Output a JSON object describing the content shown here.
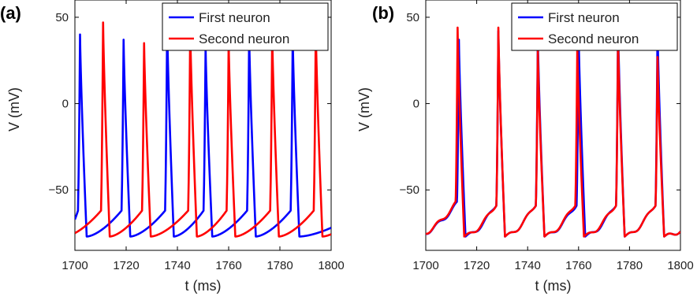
{
  "chart_data": [
    {
      "type": "line",
      "panel_label": "(a)",
      "xlabel": "t (ms)",
      "ylabel": "V (mV)",
      "xlim": [
        1700,
        1800
      ],
      "ylim": [
        -85,
        60
      ],
      "xticks": [
        1700,
        1720,
        1740,
        1760,
        1780,
        1800
      ],
      "yticks": [
        -50,
        0,
        50
      ],
      "legend_position": "top-right",
      "series": [
        {
          "name": "First neuron",
          "color": "#0000ff",
          "spike_times": [
            1702,
            1719,
            1736,
            1751,
            1768,
            1785
          ],
          "peaks": [
            40,
            37,
            46,
            33,
            40,
            39
          ]
        },
        {
          "name": "Second neuron",
          "color": "#ff0000",
          "spike_times": [
            1711,
            1727,
            1745,
            1760,
            1777,
            1794
          ],
          "peaks": [
            47,
            35,
            44,
            36,
            40,
            44
          ]
        }
      ]
    },
    {
      "type": "line",
      "panel_label": "(b)",
      "xlabel": "t (ms)",
      "ylabel": "V (mV)",
      "xlim": [
        1700,
        1800
      ],
      "ylim": [
        -85,
        60
      ],
      "xticks": [
        1700,
        1720,
        1740,
        1760,
        1780,
        1800
      ],
      "yticks": [
        -50,
        0,
        50
      ],
      "legend_position": "top-right",
      "series": [
        {
          "name": "First neuron",
          "color": "#0000ff",
          "spike_times": [
            1713,
            1728.5,
            1744,
            1760,
            1775.5,
            1791
          ],
          "peaks": [
            37,
            42,
            39,
            42,
            46,
            44
          ]
        },
        {
          "name": "Second neuron",
          "color": "#ff0000",
          "spike_times": [
            1712.5,
            1728.5,
            1744,
            1759.5,
            1775.5,
            1791
          ],
          "peaks": [
            44,
            44,
            31,
            33,
            38,
            27
          ]
        }
      ]
    }
  ]
}
